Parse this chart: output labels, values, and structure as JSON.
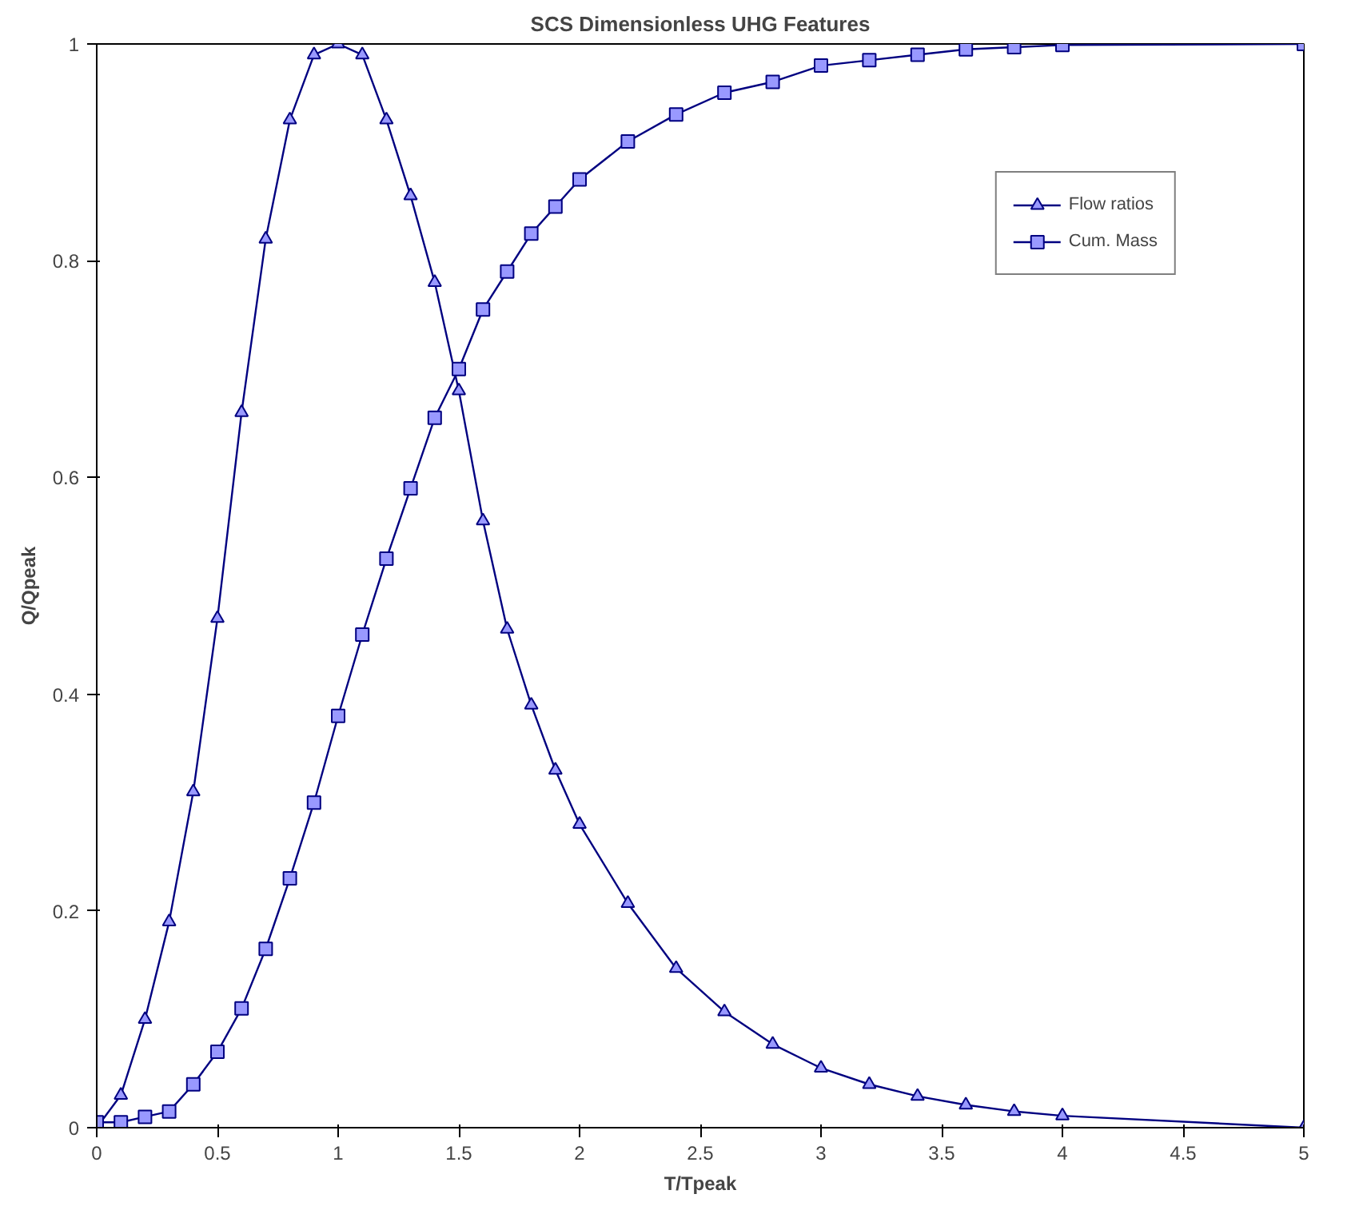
{
  "chart_data": {
    "type": "line",
    "title": "SCS Dimensionless UHG Features",
    "xlabel": "T/Tpeak",
    "ylabel": "Q/Qpeak",
    "xlim": [
      0,
      5
    ],
    "ylim": [
      0,
      1
    ],
    "xticks": [
      0,
      0.5,
      1,
      1.5,
      2,
      2.5,
      3,
      3.5,
      4,
      4.5,
      5
    ],
    "yticks": [
      0,
      0.2,
      0.4,
      0.6,
      0.8,
      1
    ],
    "grid": false,
    "legend": "top right",
    "line_style": "solid",
    "series": [
      {
        "name": "Flow ratios",
        "color": "#000080",
        "marker": "triangle",
        "x": [
          0,
          0.1,
          0.2,
          0.3,
          0.4,
          0.5,
          0.6,
          0.7,
          0.8,
          0.9,
          1.0,
          1.1,
          1.2,
          1.3,
          1.4,
          1.5,
          1.6,
          1.7,
          1.8,
          1.9,
          2.0,
          2.2,
          2.4,
          2.6,
          2.8,
          3.0,
          3.2,
          3.4,
          3.6,
          3.8,
          4.0,
          5.0
        ],
        "values": [
          0,
          0.03,
          0.1,
          0.19,
          0.31,
          0.47,
          0.66,
          0.82,
          0.93,
          0.99,
          1.0,
          0.99,
          0.93,
          0.86,
          0.78,
          0.68,
          0.56,
          0.46,
          0.39,
          0.33,
          0.28,
          0.207,
          0.147,
          0.107,
          0.077,
          0.055,
          0.04,
          0.029,
          0.021,
          0.015,
          0.011,
          0
        ]
      },
      {
        "name": "Cum. Mass",
        "color": "#000080",
        "marker": "square",
        "x": [
          0,
          0.1,
          0.2,
          0.3,
          0.4,
          0.5,
          0.6,
          0.7,
          0.8,
          0.9,
          1.0,
          1.1,
          1.2,
          1.3,
          1.4,
          1.5,
          1.6,
          1.7,
          1.8,
          1.9,
          2.0,
          2.2,
          2.4,
          2.6,
          2.8,
          3.0,
          3.2,
          3.4,
          3.6,
          3.8,
          4.0,
          5.0
        ],
        "values": [
          0.005,
          0.005,
          0.01,
          0.015,
          0.04,
          0.07,
          0.11,
          0.165,
          0.23,
          0.3,
          0.38,
          0.455,
          0.525,
          0.59,
          0.655,
          0.7,
          0.755,
          0.79,
          0.825,
          0.85,
          0.875,
          0.91,
          0.935,
          0.955,
          0.965,
          0.98,
          0.985,
          0.99,
          0.995,
          0.997,
          0.999,
          1.0
        ]
      }
    ]
  }
}
